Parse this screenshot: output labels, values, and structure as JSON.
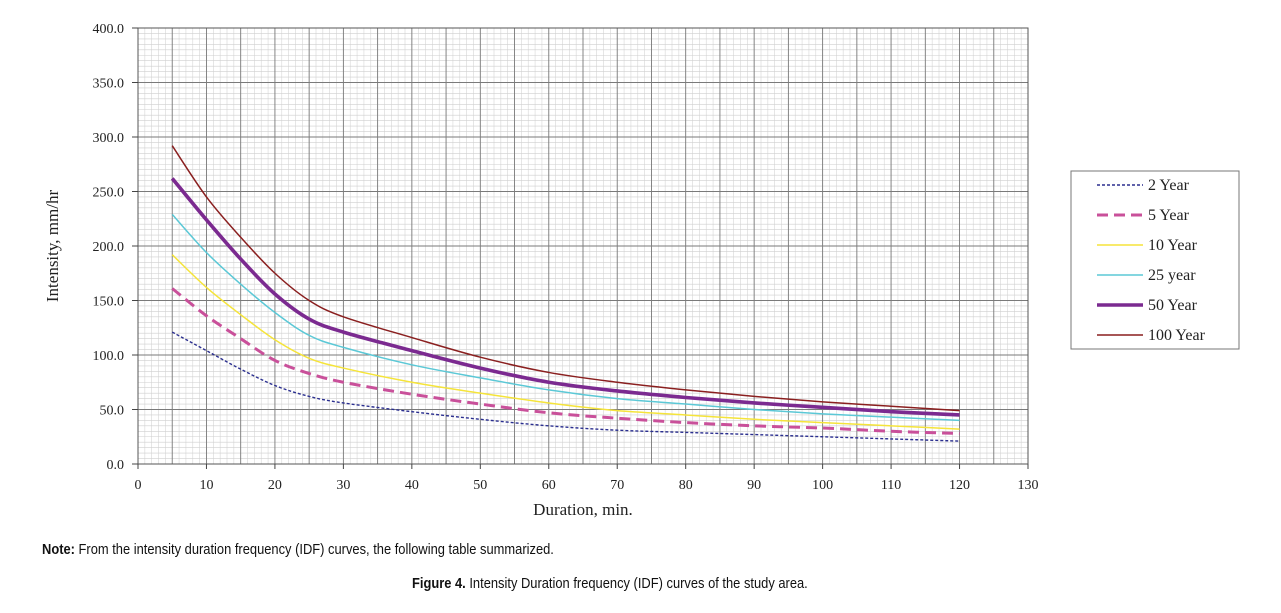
{
  "chart_data": {
    "type": "line",
    "xlabel": "Duration, min.",
    "ylabel": "Intensity, mm/hr",
    "xlim": [
      0,
      130
    ],
    "ylim": [
      0,
      400
    ],
    "x_ticks": [
      "0",
      "10",
      "20",
      "30",
      "40",
      "50",
      "60",
      "70",
      "80",
      "90",
      "100",
      "110",
      "120",
      "130"
    ],
    "y_ticks": [
      "0.0",
      "50.0",
      "100.0",
      "150.0",
      "200.0",
      "250.0",
      "300.0",
      "350.0",
      "400.0"
    ],
    "grid": true,
    "legend_position": "right",
    "x": [
      5,
      10,
      15,
      20,
      25,
      30,
      40,
      50,
      60,
      70,
      80,
      90,
      100,
      110,
      120
    ],
    "series": [
      {
        "name": "2 Year",
        "color": "#2b2f8f",
        "style": "dotted",
        "values": [
          121,
          104,
          87,
          72,
          62,
          56,
          48,
          41,
          35,
          31,
          29,
          27,
          25,
          23,
          21
        ]
      },
      {
        "name": "5 Year",
        "color": "#c9509a",
        "style": "dashed",
        "values": [
          161,
          136,
          115,
          95,
          83,
          75,
          64,
          55,
          47,
          42,
          38,
          35,
          33,
          30,
          28
        ]
      },
      {
        "name": "10 Year",
        "color": "#f5e43a",
        "style": "solid",
        "values": [
          192,
          162,
          137,
          114,
          97,
          88,
          75,
          65,
          56,
          49,
          45,
          41,
          38,
          35,
          32
        ]
      },
      {
        "name": "25 year",
        "color": "#5bc8d6",
        "style": "solid",
        "values": [
          229,
          194,
          165,
          139,
          118,
          107,
          91,
          79,
          68,
          60,
          55,
          50,
          46,
          43,
          40
        ]
      },
      {
        "name": "50 Year",
        "color": "#7b2a90",
        "style": "thick",
        "values": [
          262,
          224,
          188,
          156,
          133,
          121,
          104,
          88,
          75,
          67,
          61,
          56,
          52,
          48,
          45
        ]
      },
      {
        "name": "100 Year",
        "color": "#8a1f1f",
        "style": "solid",
        "values": [
          292,
          245,
          208,
          175,
          150,
          135,
          116,
          98,
          84,
          75,
          68,
          62,
          57,
          53,
          49
        ]
      }
    ]
  },
  "note": {
    "prefix": "Note:",
    "text": " From the intensity duration frequency (IDF) curves, the following table summarized."
  },
  "caption": {
    "prefix": "Figure 4.",
    "text": " Intensity Duration frequency (IDF) curves of the study area."
  }
}
